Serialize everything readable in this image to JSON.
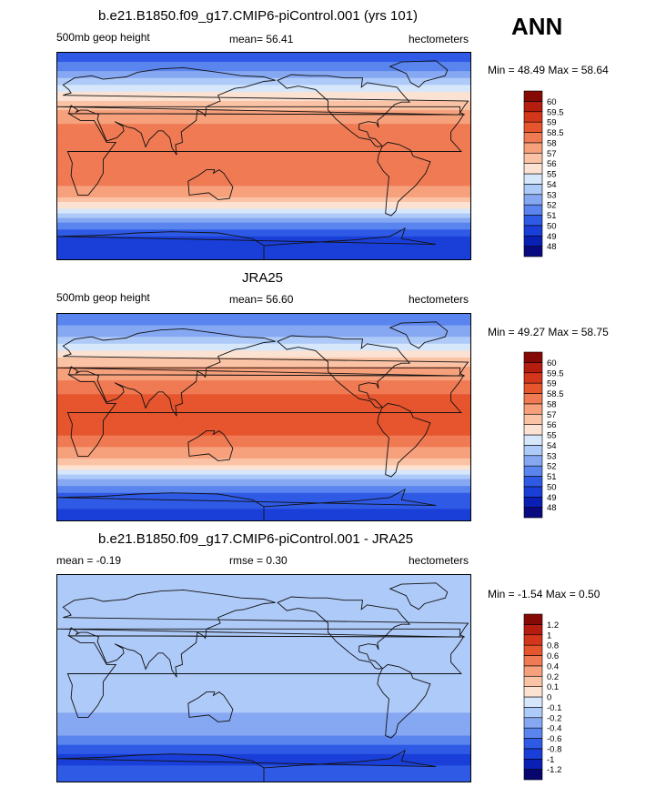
{
  "season": "ANN",
  "chart_data": [
    {
      "type": "heatmap",
      "title": "b.e21.B1850.f09_g17.CMIP6-piControl.001 (yrs 101)",
      "left_label": "500mb geop height",
      "center_label": "mean=  56.41",
      "right_label": "hectometers",
      "minmax_label": "Min =  48.49 Max =  58.64",
      "mean": 56.41,
      "min": 48.49,
      "max": 58.64,
      "variable": "500mb geop height",
      "units": "hectometers",
      "colorbar_levels": [
        "48",
        "49",
        "50",
        "51",
        "52",
        "53",
        "54",
        "55",
        "56",
        "57",
        "58",
        "58.5",
        "59",
        "59.5",
        "60"
      ],
      "colorbar_colors": [
        "#0a0a80",
        "#0a1fb4",
        "#1a3fd8",
        "#2f5ae6",
        "#5a85ee",
        "#86a8f3",
        "#aecaf8",
        "#d6e6fb",
        "#fbe2d2",
        "#fbc3a6",
        "#f6a07c",
        "#ef7a53",
        "#e6552e",
        "#d3361a",
        "#b51d0e",
        "#850a06"
      ],
      "value_by_latitude": [
        [
          90,
          50
        ],
        [
          70,
          52.5
        ],
        [
          55,
          55
        ],
        [
          45,
          56.5
        ],
        [
          35,
          57.5
        ],
        [
          25,
          58.2
        ],
        [
          15,
          58.4
        ],
        [
          0,
          58.5
        ],
        [
          -15,
          58.3
        ],
        [
          -25,
          58
        ],
        [
          -35,
          57
        ],
        [
          -45,
          55
        ],
        [
          -55,
          52.5
        ],
        [
          -70,
          50
        ],
        [
          -90,
          49
        ]
      ]
    },
    {
      "type": "heatmap",
      "title": "JRA25",
      "left_label": "500mb geop height",
      "center_label": "mean=  56.60",
      "right_label": "hectometers",
      "minmax_label": "Min =  49.27 Max =  58.75",
      "mean": 56.6,
      "min": 49.27,
      "max": 58.75,
      "variable": "500mb geop height",
      "units": "hectometers",
      "colorbar_levels": [
        "48",
        "49",
        "50",
        "51",
        "52",
        "53",
        "54",
        "55",
        "56",
        "57",
        "58",
        "58.5",
        "59",
        "59.5",
        "60"
      ],
      "colorbar_colors": [
        "#0a0a80",
        "#0a1fb4",
        "#1a3fd8",
        "#2f5ae6",
        "#5a85ee",
        "#86a8f3",
        "#aecaf8",
        "#d6e6fb",
        "#fbe2d2",
        "#fbc3a6",
        "#f6a07c",
        "#ef7a53",
        "#e6552e",
        "#d3361a",
        "#b51d0e",
        "#850a06"
      ],
      "value_by_latitude": [
        [
          90,
          51
        ],
        [
          70,
          53
        ],
        [
          55,
          55.5
        ],
        [
          45,
          56.8
        ],
        [
          35,
          57.8
        ],
        [
          25,
          58.4
        ],
        [
          15,
          58.6
        ],
        [
          0,
          58.7
        ],
        [
          -15,
          58.5
        ],
        [
          -25,
          58.1
        ],
        [
          -35,
          57.2
        ],
        [
          -45,
          55.3
        ],
        [
          -55,
          52.7
        ],
        [
          -70,
          50.5
        ],
        [
          -90,
          49.5
        ]
      ]
    },
    {
      "type": "heatmap",
      "title": "b.e21.B1850.f09_g17.CMIP6-piControl.001 - JRA25",
      "left_label": "mean =  -0.19",
      "center_label": "rmse =   0.30",
      "right_label": "hectometers",
      "minmax_label": "Min =  -1.54 Max =   0.50",
      "mean": -0.19,
      "rmse": 0.3,
      "min": -1.54,
      "max": 0.5,
      "units": "hectometers",
      "colorbar_levels": [
        "-1.2",
        "-1",
        "-0.8",
        "-0.6",
        "-0.4",
        "-0.2",
        "-0.1",
        "0",
        "0.1",
        "0.2",
        "0.4",
        "0.6",
        "0.8",
        "1",
        "1.2"
      ],
      "colorbar_colors": [
        "#06066e",
        "#0a1fb4",
        "#1a3fd8",
        "#2f5ae6",
        "#5a85ee",
        "#86a8f3",
        "#aecaf8",
        "#d6e6fb",
        "#fbe2d2",
        "#fbc3a6",
        "#f6a07c",
        "#ef7a53",
        "#e6552e",
        "#d3361a",
        "#b51d0e",
        "#850a06"
      ],
      "value_by_latitude": [
        [
          90,
          -0.15
        ],
        [
          60,
          -0.2
        ],
        [
          30,
          -0.15
        ],
        [
          0,
          -0.15
        ],
        [
          -30,
          -0.2
        ],
        [
          -50,
          -0.4
        ],
        [
          -70,
          -0.9
        ],
        [
          -90,
          -0.6
        ]
      ]
    }
  ]
}
